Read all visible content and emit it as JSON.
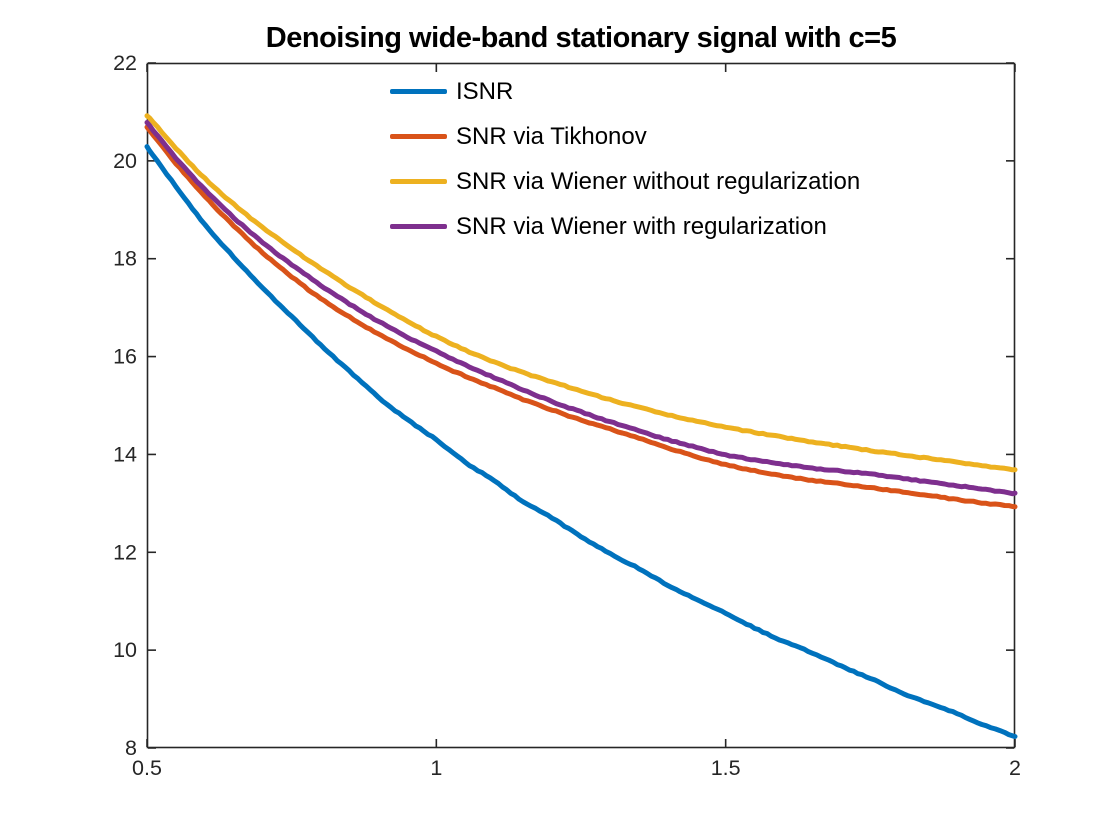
{
  "figure": {
    "background": "#ffffff",
    "axis_color": "#262626",
    "text_color": "#000000"
  },
  "chart_data": {
    "type": "line",
    "title": "Denoising wide-band stationary signal with c=5",
    "xlabel": "",
    "ylabel": "",
    "xlim": [
      0.5,
      2
    ],
    "ylim": [
      8,
      22
    ],
    "xticks": [
      0.5,
      1,
      1.5,
      2
    ],
    "xtick_labels": [
      "0.5",
      "1",
      "1.5",
      "2"
    ],
    "yticks": [
      8,
      10,
      12,
      14,
      16,
      18,
      20,
      22
    ],
    "ytick_labels": [
      "8",
      "10",
      "12",
      "14",
      "16",
      "18",
      "20",
      "22"
    ],
    "grid": false,
    "box": true,
    "tick_direction": "in",
    "legend_position": "top-center-inside",
    "legend_frame": false,
    "line_width": 5,
    "x": [
      0.5,
      0.55,
      0.6,
      0.65,
      0.7,
      0.75,
      0.8,
      0.85,
      0.9,
      0.95,
      1,
      1.05,
      1.1,
      1.15,
      1.2,
      1.25,
      1.3,
      1.35,
      1.4,
      1.45,
      1.5,
      1.55,
      1.6,
      1.65,
      1.7,
      1.75,
      1.8,
      1.85,
      1.9,
      1.95,
      2
    ],
    "series": [
      {
        "name": "ISNR",
        "color": "#0072BD",
        "values": [
          20.28,
          19.48,
          18.7,
          18.03,
          17.4,
          16.82,
          16.24,
          15.7,
          15.17,
          14.71,
          14.3,
          13.84,
          13.46,
          13.04,
          12.7,
          12.32,
          11.97,
          11.67,
          11.33,
          11.04,
          10.76,
          10.45,
          10.18,
          9.94,
          9.67,
          9.42,
          9.15,
          8.92,
          8.7,
          8.45,
          8.24
        ]
      },
      {
        "name": "SNR via Tikhonov",
        "color": "#D95319",
        "values": [
          20.68,
          19.95,
          19.28,
          18.67,
          18.12,
          17.63,
          17.19,
          16.81,
          16.46,
          16.15,
          15.86,
          15.6,
          15.36,
          15.12,
          14.91,
          14.7,
          14.52,
          14.33,
          14.13,
          13.95,
          13.79,
          13.67,
          13.56,
          13.47,
          13.4,
          13.32,
          13.24,
          13.16,
          13.08,
          13,
          12.93
        ]
      },
      {
        "name": "SNR via Wiener without regularization",
        "color": "#EDB120",
        "values": [
          20.93,
          20.26,
          19.64,
          19.11,
          18.64,
          18.21,
          17.8,
          17.42,
          17.06,
          16.72,
          16.41,
          16.13,
          15.89,
          15.67,
          15.48,
          15.3,
          15.12,
          14.96,
          14.81,
          14.68,
          14.56,
          14.45,
          14.35,
          14.25,
          14.17,
          14.08,
          14,
          13.92,
          13.84,
          13.76,
          13.68
        ]
      },
      {
        "name": "SNR via Wiener with regularization",
        "color": "#7E2F8E",
        "values": [
          20.78,
          20.06,
          19.41,
          18.84,
          18.33,
          17.88,
          17.46,
          17.07,
          16.72,
          16.4,
          16.11,
          15.83,
          15.57,
          15.32,
          15.08,
          14.87,
          14.67,
          14.48,
          14.3,
          14.14,
          13.99,
          13.89,
          13.8,
          13.72,
          13.66,
          13.6,
          13.52,
          13.44,
          13.36,
          13.28,
          13.2
        ]
      }
    ]
  }
}
